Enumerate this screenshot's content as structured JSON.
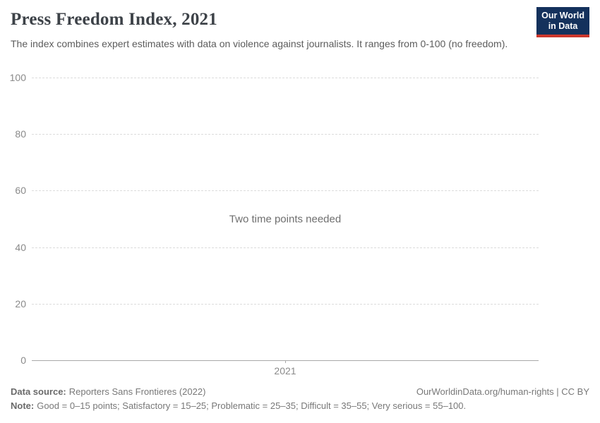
{
  "header": {
    "title": "Press Freedom Index, 2021",
    "subtitle": "The index combines expert estimates with data on violence against journalists. It ranges from 0-100 (no freedom).",
    "logo": {
      "line1": "Our World",
      "line2": "in Data",
      "bg_color": "#14315c",
      "accent_color": "#cc362c"
    }
  },
  "chart_data": {
    "type": "line",
    "title": "Press Freedom Index, 2021",
    "message": "Two time points needed",
    "series": [],
    "x": [
      2021
    ],
    "xticks": [
      "2021"
    ],
    "yticks": [
      0,
      20,
      40,
      60,
      80,
      100
    ],
    "ylim": [
      0,
      100
    ],
    "xlabel": "",
    "ylabel": "",
    "grid": "horizontal-dashed",
    "legend": "none"
  },
  "footer": {
    "datasource_label": "Data source:",
    "datasource_value": "Reporters Sans Frontieres (2022)",
    "citation": "OurWorldinData.org/human-rights | CC BY",
    "note_label": "Note:",
    "note_value": "Good = 0–15 points; Satisfactory = 15–25; Problematic = 25–35; Difficult = 35–55; Very serious = 55–100."
  }
}
